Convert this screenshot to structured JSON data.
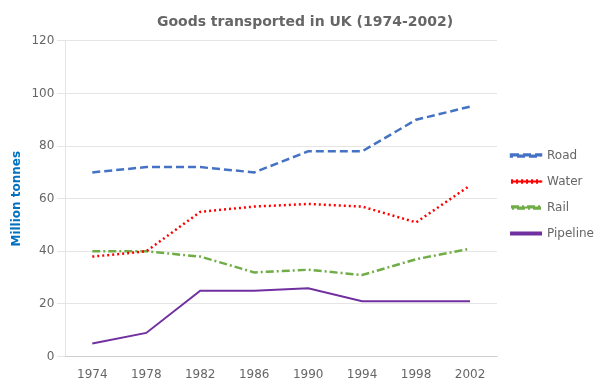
{
  "chart_data": {
    "type": "line",
    "title": "Goods transported in UK (1974-2002)",
    "ylabel": "Million tonnes",
    "x": [
      1974,
      1978,
      1982,
      1986,
      1990,
      1994,
      1998,
      2002
    ],
    "series": [
      {
        "name": "Road",
        "color": "#4472C4",
        "line_style": "dashed",
        "values": [
          70,
          72,
          72,
          70,
          78,
          78,
          90,
          95
        ]
      },
      {
        "name": "Water",
        "color": "#FF0000",
        "line_style": "dotted",
        "values": [
          38,
          40,
          55,
          57,
          58,
          57,
          51,
          65
        ]
      },
      {
        "name": "Rail",
        "color": "#70AD47",
        "line_style": "dashdot",
        "values": [
          40,
          40,
          38,
          32,
          33,
          31,
          37,
          41
        ]
      },
      {
        "name": "Pipeline",
        "color": "#7030A0",
        "line_style": "solid",
        "values": [
          5,
          9,
          25,
          25,
          26,
          21,
          21,
          21
        ]
      }
    ],
    "xlim": [
      1972,
      2004
    ],
    "xticks": [
      1974,
      1978,
      1982,
      1986,
      1990,
      1994,
      1998,
      2002
    ],
    "ylim": [
      0,
      120
    ],
    "yticks": [
      0,
      20,
      40,
      60,
      80,
      100,
      120
    ],
    "grid": "y",
    "legend": "right",
    "marker": "none"
  }
}
